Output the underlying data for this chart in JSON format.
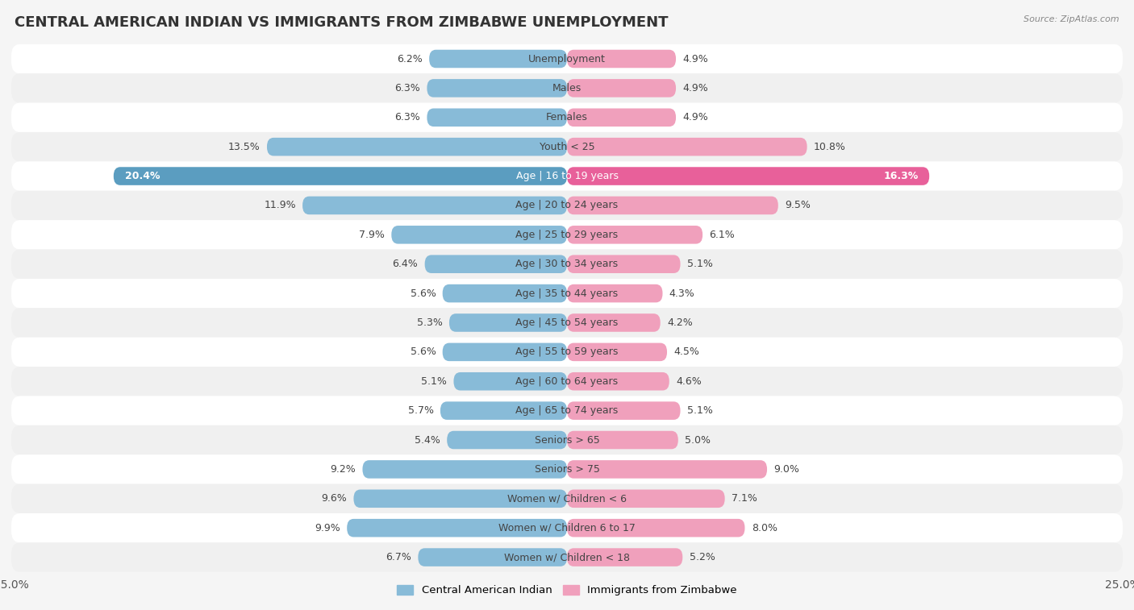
{
  "title": "CENTRAL AMERICAN INDIAN VS IMMIGRANTS FROM ZIMBABWE UNEMPLOYMENT",
  "source": "Source: ZipAtlas.com",
  "categories": [
    "Unemployment",
    "Males",
    "Females",
    "Youth < 25",
    "Age | 16 to 19 years",
    "Age | 20 to 24 years",
    "Age | 25 to 29 years",
    "Age | 30 to 34 years",
    "Age | 35 to 44 years",
    "Age | 45 to 54 years",
    "Age | 55 to 59 years",
    "Age | 60 to 64 years",
    "Age | 65 to 74 years",
    "Seniors > 65",
    "Seniors > 75",
    "Women w/ Children < 6",
    "Women w/ Children 6 to 17",
    "Women w/ Children < 18"
  ],
  "left_values": [
    6.2,
    6.3,
    6.3,
    13.5,
    20.4,
    11.9,
    7.9,
    6.4,
    5.6,
    5.3,
    5.6,
    5.1,
    5.7,
    5.4,
    9.2,
    9.6,
    9.9,
    6.7
  ],
  "right_values": [
    4.9,
    4.9,
    4.9,
    10.8,
    16.3,
    9.5,
    6.1,
    5.1,
    4.3,
    4.2,
    4.5,
    4.6,
    5.1,
    5.0,
    9.0,
    7.1,
    8.0,
    5.2
  ],
  "left_color": "#88bbd8",
  "right_color": "#f0a0bc",
  "left_label": "Central American Indian",
  "right_label": "Immigrants from Zimbabwe",
  "highlight_left_color": "#5b9dc0",
  "highlight_right_color": "#e8609a",
  "highlight_rows": [
    4
  ],
  "background_color": "#f5f5f5",
  "row_bg_odd": "#f0f0f0",
  "row_bg_even": "#ffffff",
  "xlim": 25.0,
  "title_fontsize": 13,
  "label_fontsize": 9,
  "value_fontsize": 9,
  "tick_fontsize": 10
}
